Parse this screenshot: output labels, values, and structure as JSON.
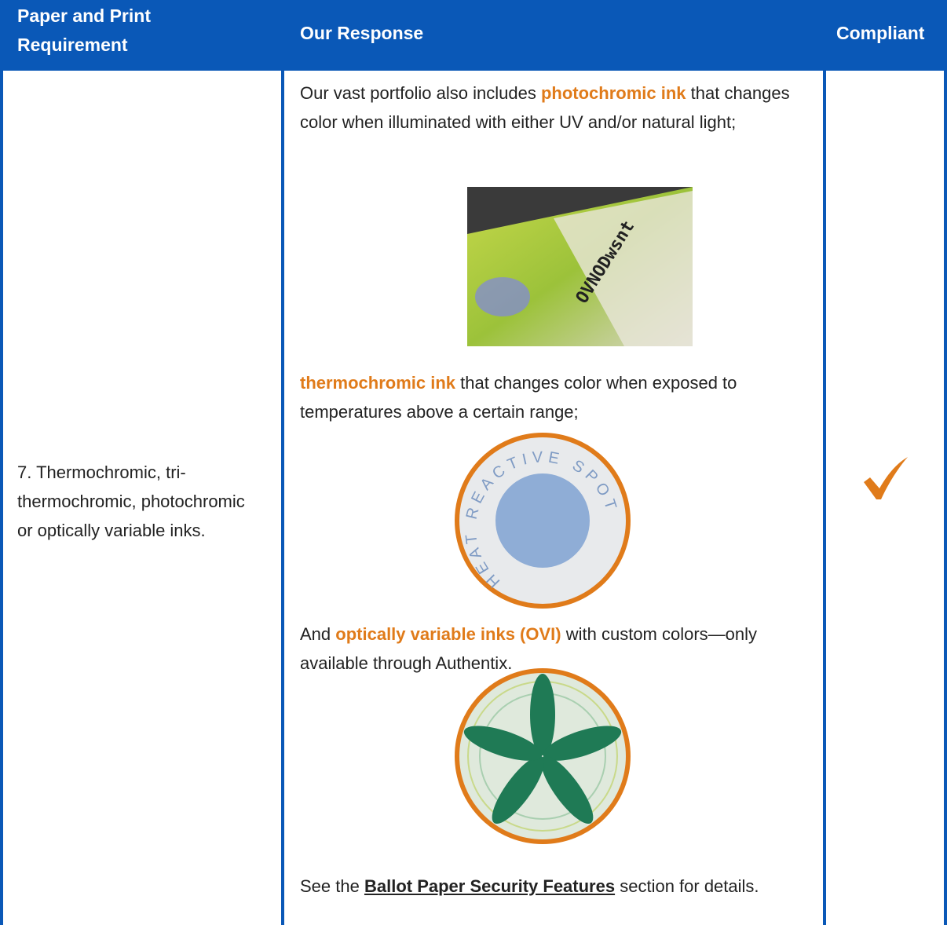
{
  "header": {
    "columns": [
      "Paper and Print Requirement",
      "Our Response",
      "Compliant"
    ]
  },
  "row": {
    "requirement": "7. Thermochromic, tri-thermochromic, photochromic or optically variable inks.",
    "response": {
      "paragraphs": [
        {
          "before": "Our vast portfolio also includes",
          "highlight": "photochromic ink",
          "after": "that changes color when illuminated with either UV and/or natural light;"
        },
        {
          "highlight": "thermochromic ink",
          "after": "that changes color when exposed to temperatures above a certain range;"
        },
        {
          "before": "And",
          "highlight": "optically variable inks (OVI)",
          "after": "with custom colors—only available through Authentix."
        },
        {
          "before": "See the",
          "link": "Ballot Paper Security Features",
          "after": "section for details."
        }
      ],
      "image_texts": {
        "photochromic": "OVNODwsnt",
        "thermochromic": "HEAT REACTIVE SPOT"
      }
    }
  }
}
